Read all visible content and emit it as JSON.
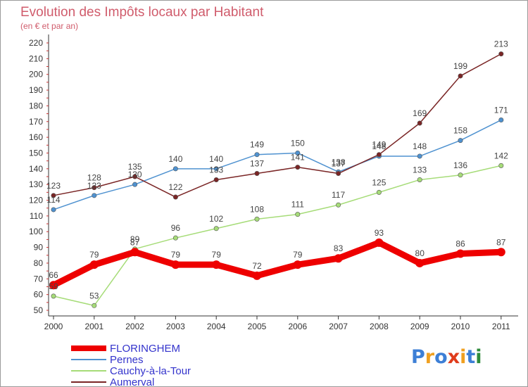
{
  "chart_data": {
    "type": "line",
    "title": "Evolution des Impôts locaux par Habitant",
    "subtitle": "(en € et par an)",
    "xlabel": "",
    "ylabel": "",
    "categories": [
      "2000",
      "2001",
      "2002",
      "2003",
      "2004",
      "2005",
      "2006",
      "2007",
      "2008",
      "2009",
      "2010",
      "2011"
    ],
    "ylim": [
      50,
      220
    ],
    "yticks": [
      50,
      60,
      70,
      80,
      90,
      100,
      110,
      120,
      130,
      140,
      150,
      160,
      170,
      180,
      190,
      200,
      210,
      220
    ],
    "grid": false,
    "legend": "bottom-left",
    "series": [
      {
        "name": "FLORINGHEM",
        "color": "#ee0000",
        "values": [
          66,
          79,
          87,
          79,
          79,
          72,
          79,
          83,
          93,
          80,
          86,
          87
        ]
      },
      {
        "name": "Pernes",
        "color": "#4f92d0",
        "values": [
          114,
          123,
          130,
          140,
          140,
          149,
          150,
          138,
          148,
          148,
          158,
          171
        ]
      },
      {
        "name": "Cauchy-à-la-Tour",
        "color": "#a6dc78",
        "values": [
          59,
          53,
          89,
          96,
          102,
          108,
          111,
          117,
          125,
          133,
          136,
          142
        ]
      },
      {
        "name": "Aumerval",
        "color": "#7a2525",
        "values": [
          123,
          128,
          135,
          122,
          133,
          137,
          141,
          137,
          149,
          169,
          199,
          213
        ]
      }
    ]
  },
  "logo": {
    "text": "Proxiti",
    "letter_colors": [
      "#3d7fd6",
      "#f0a020",
      "#3d7fd6",
      "#e03c1c",
      "#f0a020",
      "#3d7fd6",
      "#2e8b3a"
    ]
  }
}
